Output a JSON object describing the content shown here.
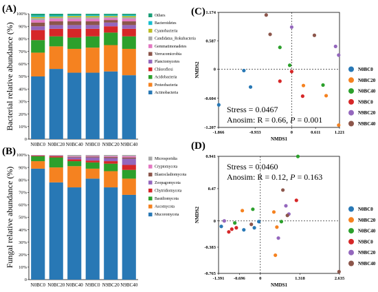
{
  "chart_data": [
    {
      "panel_label": "(A)",
      "type": "bar",
      "stacked": true,
      "ylabel": "Bacterial relative abundance (%)",
      "ylim": [
        0,
        100
      ],
      "yticks": [
        0,
        10,
        20,
        30,
        40,
        50,
        60,
        70,
        80,
        90,
        100
      ],
      "ytick_labels": [
        "0",
        "10%",
        "20%",
        "30%",
        "40%",
        "50%",
        "60%",
        "70%",
        "80%",
        "90%",
        "100%"
      ],
      "categories": [
        "N0BC0",
        "N0BC20",
        "N0BC40",
        "N9BC0",
        "N9BC20",
        "N9BC40"
      ],
      "legend_position": "right",
      "series": [
        {
          "name": "Actinobacteria",
          "color": "#2878b5",
          "values": [
            50,
            56,
            53,
            53,
            54,
            51
          ]
        },
        {
          "name": "Proteobacteria",
          "color": "#f58220",
          "values": [
            19,
            18,
            19,
            20,
            21,
            21
          ]
        },
        {
          "name": "Acidobacteria",
          "color": "#2ca02c",
          "values": [
            10,
            8,
            9,
            9,
            10,
            10
          ]
        },
        {
          "name": "Chloroflexi",
          "color": "#d62728",
          "values": [
            8,
            6,
            7,
            6,
            5,
            6
          ]
        },
        {
          "name": "Planctomycetes",
          "color": "#9467bd",
          "values": [
            3,
            3,
            3,
            3,
            3,
            3
          ]
        },
        {
          "name": "Verrucomicrobia",
          "color": "#8c564b",
          "values": [
            3,
            3,
            3,
            3,
            2,
            3
          ]
        },
        {
          "name": "Gemmatimonadetes",
          "color": "#e377c2",
          "values": [
            2,
            2,
            2,
            2,
            1.5,
            2
          ]
        },
        {
          "name": "Candidatus_Rokubacteria",
          "color": "#a9a9a9",
          "values": [
            1.5,
            1,
            1.3,
            1.2,
            1,
            1.2
          ]
        },
        {
          "name": "Cyanobacteria",
          "color": "#bcbd22",
          "values": [
            1,
            0.8,
            1,
            1,
            0.8,
            1
          ]
        },
        {
          "name": "Bacteroidetes",
          "color": "#17becf",
          "values": [
            1,
            0.8,
            0.7,
            0.8,
            0.7,
            0.8
          ]
        },
        {
          "name": "Others",
          "color": "#1a9e77",
          "values": [
            1.5,
            1.4,
            1,
            1,
            1,
            1
          ]
        }
      ]
    },
    {
      "panel_label": "(B)",
      "type": "bar",
      "stacked": true,
      "ylabel": "Fungal relative abundance (%)",
      "ylim": [
        0,
        100
      ],
      "yticks": [
        0,
        10,
        20,
        30,
        40,
        50,
        60,
        70,
        80,
        90,
        100
      ],
      "ytick_labels": [
        "0",
        "10%",
        "20%",
        "30%",
        "40%",
        "50%",
        "60%",
        "70%",
        "80%",
        "90%",
        "100%"
      ],
      "categories": [
        "N0BC0",
        "N0BC20",
        "N0BC40",
        "N9BC0",
        "N9BC20",
        "N9BC40"
      ],
      "legend_position": "right",
      "series": [
        {
          "name": "Mucoromycota",
          "color": "#2878b5",
          "values": [
            89,
            78,
            74,
            81,
            74,
            68
          ]
        },
        {
          "name": "Ascomycota",
          "color": "#f58220",
          "values": [
            6,
            12,
            17,
            8,
            13,
            13
          ]
        },
        {
          "name": "Basidiomycota",
          "color": "#2ca02c",
          "values": [
            4,
            8,
            4,
            5,
            6,
            7
          ]
        },
        {
          "name": "Chytridiomycota",
          "color": "#d62728",
          "values": [
            0.5,
            1,
            1.5,
            1.5,
            2,
            4
          ]
        },
        {
          "name": "Zoopagomycota",
          "color": "#9467bd",
          "values": [
            0.2,
            0.3,
            1.5,
            2.5,
            2.5,
            5
          ]
        },
        {
          "name": "Blastocladiomycota",
          "color": "#8c564b",
          "values": [
            0.1,
            0.3,
            0.5,
            0.7,
            0.8,
            1
          ]
        },
        {
          "name": "Cryptomycota",
          "color": "#e377c2",
          "values": [
            0.1,
            0.2,
            0.5,
            0.6,
            0.7,
            1
          ]
        },
        {
          "name": "Microsporidia",
          "color": "#a9a9a9",
          "values": [
            0.1,
            0.2,
            1,
            0.7,
            1,
            1
          ]
        }
      ]
    },
    {
      "panel_label": "(C)",
      "type": "scatter",
      "xlabel": "NMDS1",
      "ylabel": "NMDS2",
      "xlim": [
        -1.866,
        1.221
      ],
      "ylim": [
        -1.207,
        1.174
      ],
      "xticks": [
        -1.866,
        -0.933,
        0,
        0.611,
        1.221
      ],
      "xtick_labels": [
        "-1.866",
        "-0.933",
        "0",
        "0.611",
        "1.221"
      ],
      "yticks": [
        -1.207,
        -0.604,
        0,
        0.587,
        1.174
      ],
      "ytick_labels": [
        "-1.207",
        "-0.604",
        "0",
        "0.587",
        "1.174"
      ],
      "annotations": [
        "Stress = 0.0467",
        "Anosim: R = 0.66, P = 0.001"
      ],
      "legend_position": "right",
      "series": [
        {
          "name": "N0BC0",
          "color": "#2878b5",
          "points": [
            [
              -1.86,
              -0.74
            ],
            [
              -1.05,
              -0.37
            ],
            [
              -1.22,
              -0.03
            ]
          ]
        },
        {
          "name": "N0BC20",
          "color": "#f58220",
          "points": [
            [
              0.3,
              -0.34
            ],
            [
              0.88,
              -0.55
            ],
            [
              1.2,
              -1.16
            ]
          ]
        },
        {
          "name": "N0BC40",
          "color": "#2ca02c",
          "points": [
            [
              -0.3,
              0.45
            ],
            [
              -0.05,
              0.08
            ],
            [
              0.8,
              -0.33
            ]
          ]
        },
        {
          "name": "N9BC0",
          "color": "#d62728",
          "points": [
            [
              -0.3,
              -0.25
            ],
            [
              0.0,
              -0.05
            ],
            [
              0.28,
              -0.56
            ]
          ]
        },
        {
          "name": "N9BC20",
          "color": "#9467bd",
          "points": [
            [
              0.0,
              0.87
            ],
            [
              1.12,
              0.47
            ],
            [
              1.2,
              0.29
            ]
          ]
        },
        {
          "name": "N9BC40",
          "color": "#8c564b",
          "points": [
            [
              -0.65,
              1.12
            ],
            [
              -0.55,
              0.72
            ],
            [
              0.58,
              0.7
            ]
          ]
        }
      ]
    },
    {
      "panel_label": "(D)",
      "type": "scatter",
      "xlabel": "NMDS1",
      "ylabel": "NMDS2",
      "xlim": [
        -1.391,
        2.635
      ],
      "ylim": [
        -0.765,
        0.941
      ],
      "xticks": [
        -1.391,
        -0.696,
        0,
        1.318,
        2.635
      ],
      "xtick_labels": [
        "-1.391",
        "-0.696",
        "0",
        "1.318",
        "2.635"
      ],
      "yticks": [
        -0.765,
        -0.383,
        0,
        0.47,
        0.941
      ],
      "ytick_labels": [
        "-0.765",
        "-0.383",
        "0",
        "0.47",
        "0.941"
      ],
      "annotations": [
        "Stress = 0.0460",
        "Anosim: R = 0.12, P = 0.163"
      ],
      "legend_position": "right",
      "series": [
        {
          "name": "N0BC0",
          "color": "#2878b5",
          "points": [
            [
              -1.3,
              -0.08
            ],
            [
              -0.2,
              -0.1
            ],
            [
              -0.55,
              -0.13
            ],
            [
              -0.05,
              -0.01
            ]
          ]
        },
        {
          "name": "N0BC20",
          "color": "#f58220",
          "points": [
            [
              -0.6,
              0.15
            ],
            [
              0.5,
              -0.5
            ],
            [
              0.55,
              -0.09
            ],
            [
              0.45,
              0.13
            ]
          ]
        },
        {
          "name": "N0BC40",
          "color": "#2ca02c",
          "points": [
            [
              1.25,
              0.94
            ],
            [
              -0.25,
              0.17
            ],
            [
              -0.85,
              -0.03
            ],
            [
              0.7,
              -0.01
            ]
          ]
        },
        {
          "name": "N9BC0",
          "color": "#d62728",
          "points": [
            [
              -1.05,
              -0.16
            ],
            [
              1.2,
              0.3
            ],
            [
              -0.8,
              -0.1
            ],
            [
              -0.95,
              -0.12
            ]
          ]
        },
        {
          "name": "N9BC20",
          "color": "#9467bd",
          "points": [
            [
              0.95,
              0.1
            ],
            [
              0.85,
              0.22
            ],
            [
              0.6,
              -0.25
            ],
            [
              -1.2,
              0.0
            ]
          ]
        },
        {
          "name": "N9BC40",
          "color": "#8c564b",
          "points": [
            [
              2.62,
              -0.74
            ],
            [
              0.75,
              0.45
            ],
            [
              -0.3,
              -0.05
            ],
            [
              0.9,
              0.08
            ]
          ]
        }
      ]
    }
  ]
}
